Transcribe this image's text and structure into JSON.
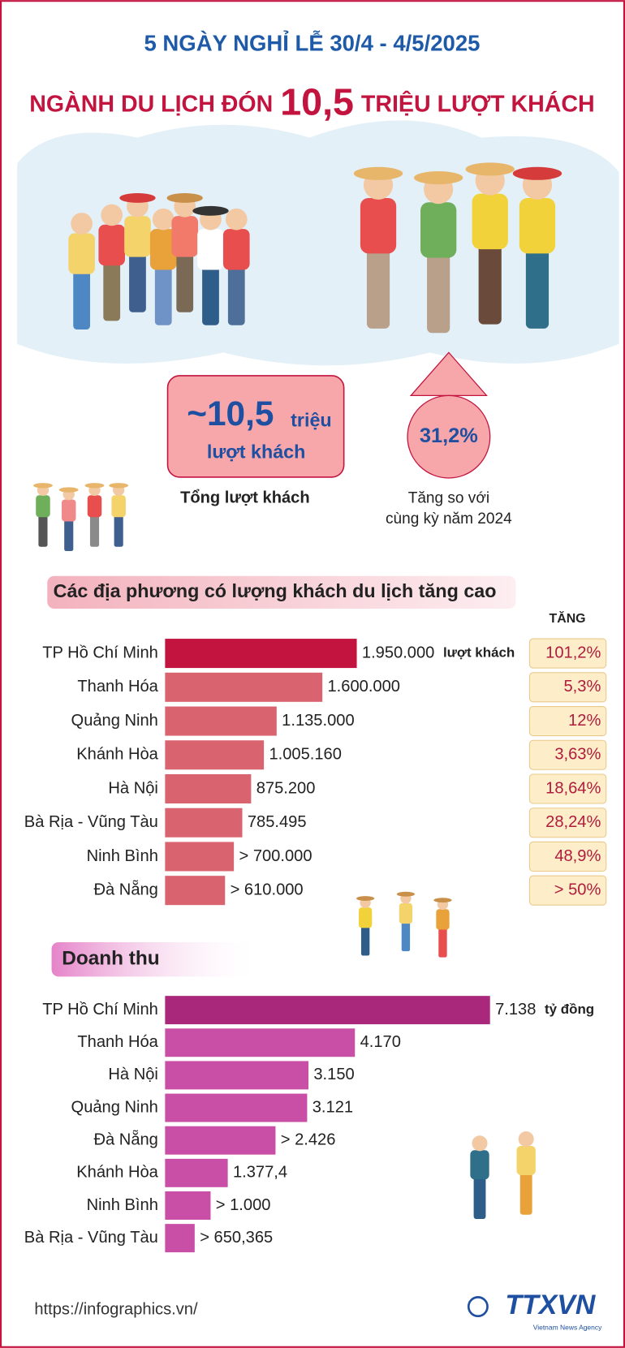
{
  "header": {
    "subtitle": "5 NGÀY NGHỈ LỄ 30/4 - 4/5/2025",
    "title_before": "NGÀNH DU LỊCH ĐÓN",
    "title_number": "10,5",
    "title_after": "TRIỆU LƯỢT KHÁCH"
  },
  "stats": {
    "total_value": "~10,5",
    "total_unit": "triệu",
    "total_unit2": "lượt khách",
    "total_caption": "Tổng lượt khách",
    "growth_value": "31,2%",
    "growth_caption1": "Tăng so với",
    "growth_caption2": "cùng kỳ năm 2024"
  },
  "chart_data": [
    {
      "type": "bar",
      "title": "Các địa phương có lượng khách du lịch tăng cao",
      "categories": [
        "TP Hồ Chí Minh",
        "Thanh Hóa",
        "Quảng Ninh",
        "Khánh Hòa",
        "Hà Nội",
        "Bà Rịa - Vũng Tàu",
        "Ninh Bình",
        "Đà Nẵng"
      ],
      "values": [
        1950000,
        1600000,
        1135000,
        1005160,
        875200,
        785495,
        700000,
        610000
      ],
      "value_labels": [
        "1.950.000",
        "1.600.000",
        "1.135.000",
        "1.005.160",
        "875.200",
        "785.495",
        "> 700.000",
        "> 610.000"
      ],
      "unit": "lượt khách",
      "colors": [
        "#c2143f",
        "#d9636f",
        "#d9636f",
        "#d9636f",
        "#d9636f",
        "#d9636f",
        "#d9636f",
        "#d9636f"
      ],
      "growth_title": "TĂNG",
      "growth_labels": [
        "101,2%",
        "5,3%",
        "12%",
        "3,63%",
        "18,64%",
        "28,24%",
        "48,9%",
        "> 50%"
      ]
    },
    {
      "type": "bar",
      "title": "Doanh thu",
      "categories": [
        "TP Hồ Chí Minh",
        "Thanh Hóa",
        "Hà Nội",
        "Quảng Ninh",
        "Đà Nẵng",
        "Khánh Hòa",
        "Ninh Bình",
        "Bà Rịa - Vũng Tàu"
      ],
      "values": [
        7138,
        4170,
        3150,
        3121,
        2426,
        1377.4,
        1000,
        650.365
      ],
      "value_labels": [
        "7.138",
        "4.170",
        "3.150",
        "3.121",
        "> 2.426",
        "1.377,4",
        "> 1.000",
        "> 650,365"
      ],
      "unit": "tỷ đồng",
      "colors": [
        "#a9287b",
        "#c94ea6",
        "#c94ea6",
        "#c94ea6",
        "#c94ea6",
        "#c94ea6",
        "#c94ea6",
        "#c94ea6"
      ]
    }
  ],
  "footer": {
    "url": "https://infographics.vn/",
    "logo": "TTXVN",
    "logo_sub": "Vietnam News Agency"
  }
}
